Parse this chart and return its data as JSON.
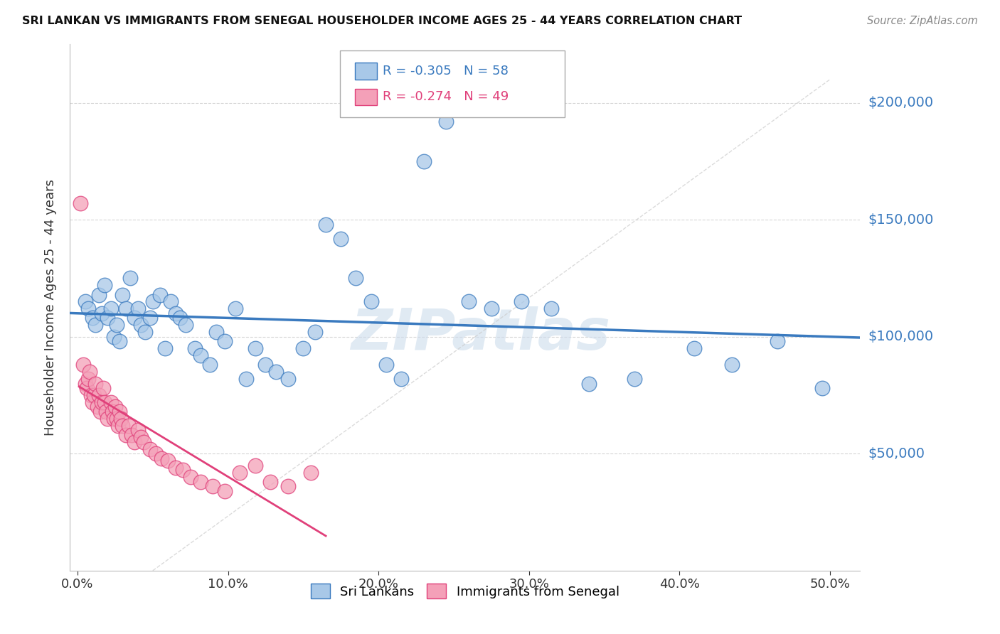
{
  "title": "SRI LANKAN VS IMMIGRANTS FROM SENEGAL HOUSEHOLDER INCOME AGES 25 - 44 YEARS CORRELATION CHART",
  "source": "Source: ZipAtlas.com",
  "ylabel": "Householder Income Ages 25 - 44 years",
  "xlabel_ticks": [
    "0.0%",
    "10.0%",
    "20.0%",
    "30.0%",
    "40.0%",
    "50.0%"
  ],
  "xlabel_vals": [
    0.0,
    0.1,
    0.2,
    0.3,
    0.4,
    0.5
  ],
  "ytick_labels": [
    "$50,000",
    "$100,000",
    "$150,000",
    "$200,000"
  ],
  "ytick_vals": [
    50000,
    100000,
    150000,
    200000
  ],
  "ylim": [
    0,
    225000
  ],
  "xlim": [
    -0.005,
    0.52
  ],
  "sri_lankans_R": "-0.305",
  "sri_lankans_N": "58",
  "senegal_R": "-0.274",
  "senegal_N": "49",
  "sri_lankans_color": "#a8c8e8",
  "senegal_color": "#f4a0b8",
  "sri_lankans_line_color": "#3a7abf",
  "senegal_line_color": "#e0407a",
  "diag_line_color": "#cccccc",
  "watermark_color": "#ccdcec",
  "sri_lankans_x": [
    0.005,
    0.007,
    0.01,
    0.012,
    0.014,
    0.016,
    0.018,
    0.02,
    0.022,
    0.024,
    0.026,
    0.028,
    0.03,
    0.032,
    0.035,
    0.038,
    0.04,
    0.042,
    0.045,
    0.048,
    0.05,
    0.055,
    0.058,
    0.062,
    0.065,
    0.068,
    0.072,
    0.078,
    0.082,
    0.088,
    0.092,
    0.098,
    0.105,
    0.112,
    0.118,
    0.125,
    0.132,
    0.14,
    0.15,
    0.158,
    0.165,
    0.175,
    0.185,
    0.195,
    0.205,
    0.215,
    0.23,
    0.245,
    0.26,
    0.275,
    0.295,
    0.315,
    0.34,
    0.37,
    0.41,
    0.435,
    0.465,
    0.495
  ],
  "sri_lankans_y": [
    115000,
    112000,
    108000,
    105000,
    118000,
    110000,
    122000,
    108000,
    112000,
    100000,
    105000,
    98000,
    118000,
    112000,
    125000,
    108000,
    112000,
    105000,
    102000,
    108000,
    115000,
    118000,
    95000,
    115000,
    110000,
    108000,
    105000,
    95000,
    92000,
    88000,
    102000,
    98000,
    112000,
    82000,
    95000,
    88000,
    85000,
    82000,
    95000,
    102000,
    148000,
    142000,
    125000,
    115000,
    88000,
    82000,
    175000,
    192000,
    115000,
    112000,
    115000,
    112000,
    80000,
    82000,
    95000,
    88000,
    98000,
    78000
  ],
  "senegal_x": [
    0.002,
    0.004,
    0.005,
    0.006,
    0.007,
    0.008,
    0.009,
    0.01,
    0.011,
    0.012,
    0.013,
    0.014,
    0.015,
    0.016,
    0.017,
    0.018,
    0.019,
    0.02,
    0.022,
    0.023,
    0.024,
    0.025,
    0.026,
    0.027,
    0.028,
    0.029,
    0.03,
    0.032,
    0.034,
    0.036,
    0.038,
    0.04,
    0.042,
    0.044,
    0.048,
    0.052,
    0.056,
    0.06,
    0.065,
    0.07,
    0.075,
    0.082,
    0.09,
    0.098,
    0.108,
    0.118,
    0.128,
    0.14,
    0.155
  ],
  "senegal_y": [
    157000,
    88000,
    80000,
    78000,
    82000,
    85000,
    75000,
    72000,
    75000,
    80000,
    70000,
    75000,
    68000,
    72000,
    78000,
    72000,
    68000,
    65000,
    72000,
    68000,
    65000,
    70000,
    65000,
    62000,
    68000,
    65000,
    62000,
    58000,
    62000,
    58000,
    55000,
    60000,
    57000,
    55000,
    52000,
    50000,
    48000,
    47000,
    44000,
    43000,
    40000,
    38000,
    36000,
    34000,
    42000,
    45000,
    38000,
    36000,
    42000
  ],
  "sri_lankans_trend_x": [
    -0.005,
    0.52
  ],
  "senegal_trend_x_start": 0.001,
  "senegal_trend_x_end": 0.165
}
